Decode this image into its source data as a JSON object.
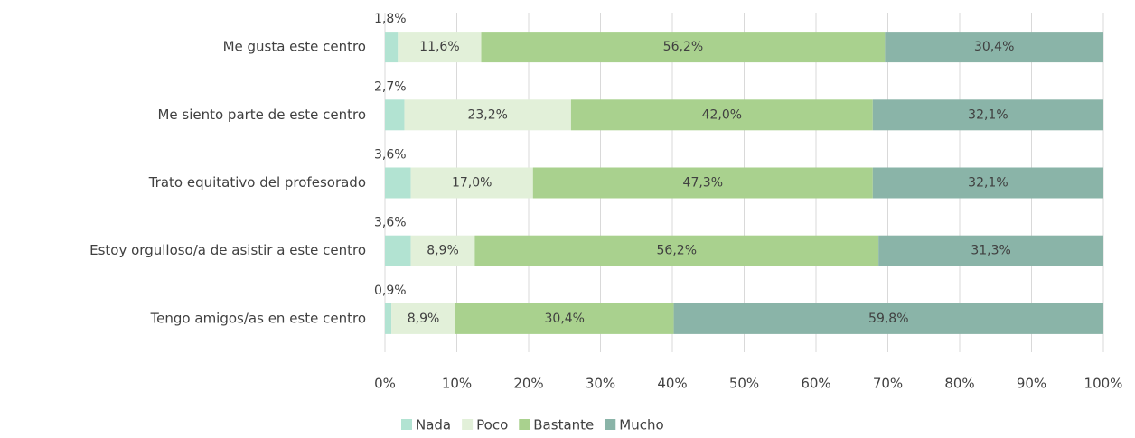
{
  "chart_data": {
    "type": "stacked-bar-horizontal",
    "categories": [
      "Me gusta este centro",
      "Me siento parte de este centro",
      "Trato equitativo del profesorado",
      "Estoy orgulloso/a de asistir a este centro",
      "Tengo amigos/as en este centro"
    ],
    "series": [
      {
        "name": "Nada",
        "color": "#b2e3d2",
        "values": [
          1.8,
          2.7,
          3.6,
          3.6,
          0.9
        ],
        "value_labels": [
          "1,8%",
          "2,7%",
          "3,6%",
          "3,6%",
          "0,9%"
        ]
      },
      {
        "name": "Poco",
        "color": "#e2f0d9",
        "values": [
          11.6,
          23.2,
          17.0,
          8.9,
          8.9
        ],
        "value_labels": [
          "11,6%",
          "23,2%",
          "17,0%",
          "8,9%",
          "8,9%"
        ]
      },
      {
        "name": "Bastante",
        "color": "#a9d18e",
        "values": [
          56.2,
          42.0,
          47.3,
          56.2,
          30.4
        ],
        "value_labels": [
          "56,2%",
          "42,0%",
          "47,3%",
          "56,2%",
          "30,4%"
        ]
      },
      {
        "name": "Mucho",
        "color": "#8ab4a8",
        "values": [
          30.4,
          32.1,
          32.1,
          31.3,
          59.8
        ],
        "value_labels": [
          "30,4%",
          "32,1%",
          "32,1%",
          "31,3%",
          "59,8%"
        ]
      }
    ],
    "xlim": [
      0,
      100
    ],
    "xticks": [
      {
        "value": 0,
        "label": "0%"
      },
      {
        "value": 10,
        "label": "10%"
      },
      {
        "value": 20,
        "label": "20%"
      },
      {
        "value": 30,
        "label": "30%"
      },
      {
        "value": 40,
        "label": "40%"
      },
      {
        "value": 50,
        "label": "50%"
      },
      {
        "value": 60,
        "label": "60%"
      },
      {
        "value": 70,
        "label": "70%"
      },
      {
        "value": 80,
        "label": "80%"
      },
      {
        "value": 90,
        "label": "90%"
      },
      {
        "value": 100,
        "label": "100%"
      }
    ],
    "grid": true,
    "legend": "bottom"
  }
}
